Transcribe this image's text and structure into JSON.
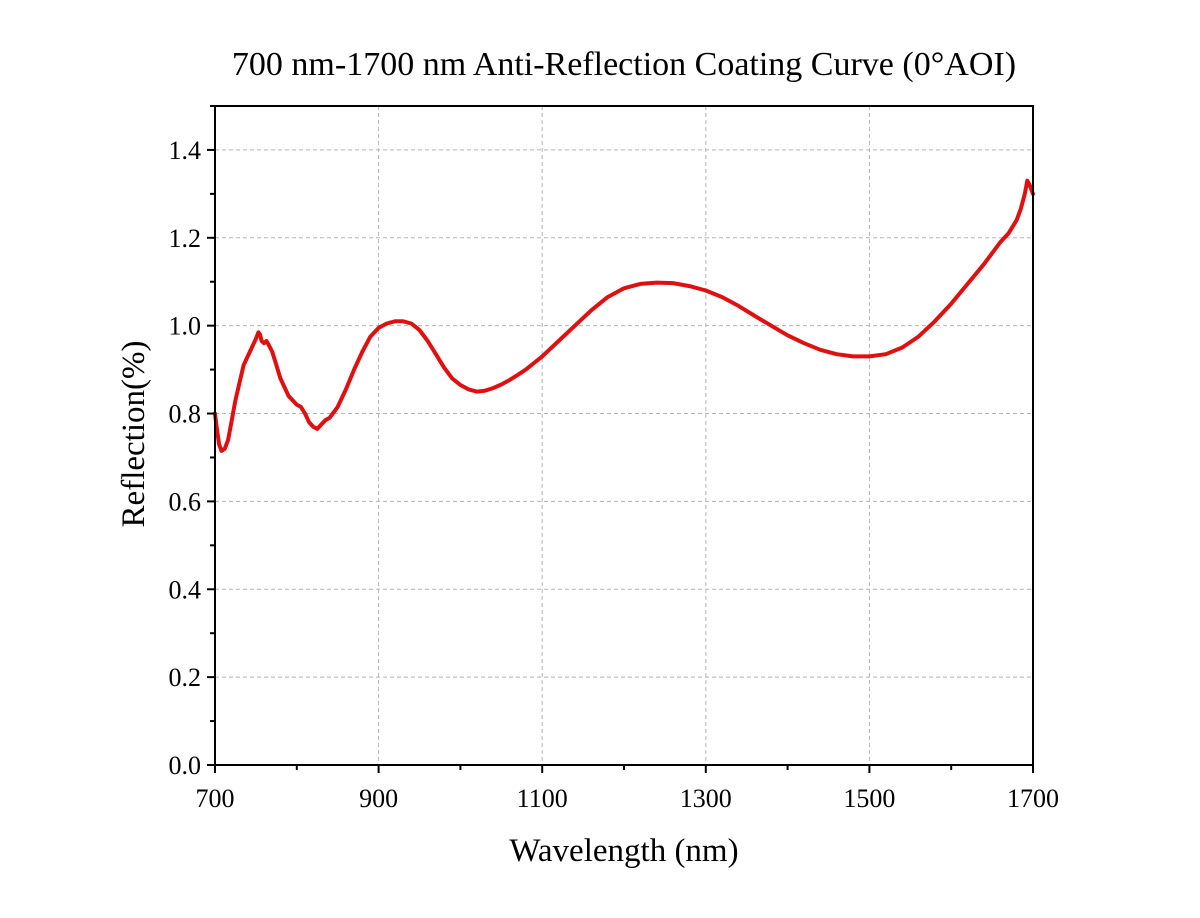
{
  "chart_data": {
    "type": "line",
    "title": "700 nm-1700 nm Anti-Reflection Coating Curve (0°AOI)",
    "xlabel": "Wavelength (nm)",
    "ylabel": "Reflection(%)",
    "xlim": [
      700,
      1700
    ],
    "ylim": [
      0,
      1.5
    ],
    "x_ticks": [
      700,
      900,
      1100,
      1300,
      1500,
      1700
    ],
    "x_tick_labels": [
      "700",
      "900",
      "1100",
      "1300",
      "1500",
      "1700"
    ],
    "y_ticks": [
      0.0,
      0.2,
      0.4,
      0.6,
      0.8,
      1.0,
      1.2,
      1.4
    ],
    "y_tick_labels": [
      "0.0",
      "0.2",
      "0.4",
      "0.6",
      "0.8",
      "1.0",
      "1.2",
      "1.4"
    ],
    "grid": true,
    "legend": "none",
    "colors": {
      "line": "#e01010",
      "frame": "#000000",
      "grid": "#b5b5b5"
    },
    "series": [
      {
        "x": [
          700,
          702,
          705,
          708,
          712,
          716,
          720,
          725,
          730,
          735,
          740,
          745,
          750,
          753,
          755,
          757,
          760,
          763,
          766,
          770,
          775,
          780,
          785,
          790,
          795,
          800,
          805,
          810,
          815,
          820,
          825,
          830,
          835,
          840,
          850,
          860,
          870,
          880,
          890,
          900,
          910,
          920,
          930,
          940,
          950,
          960,
          970,
          980,
          990,
          1000,
          1010,
          1020,
          1030,
          1040,
          1050,
          1060,
          1070,
          1080,
          1090,
          1100,
          1120,
          1140,
          1160,
          1180,
          1200,
          1220,
          1240,
          1260,
          1280,
          1300,
          1320,
          1340,
          1360,
          1380,
          1400,
          1420,
          1440,
          1460,
          1480,
          1500,
          1520,
          1540,
          1560,
          1580,
          1600,
          1620,
          1640,
          1660,
          1670,
          1680,
          1685,
          1690,
          1693,
          1696,
          1700
        ],
        "y": [
          0.8,
          0.77,
          0.73,
          0.715,
          0.72,
          0.74,
          0.78,
          0.83,
          0.87,
          0.91,
          0.93,
          0.95,
          0.97,
          0.985,
          0.98,
          0.965,
          0.96,
          0.965,
          0.955,
          0.94,
          0.91,
          0.88,
          0.86,
          0.84,
          0.83,
          0.82,
          0.815,
          0.8,
          0.78,
          0.77,
          0.765,
          0.775,
          0.785,
          0.79,
          0.815,
          0.855,
          0.9,
          0.94,
          0.975,
          0.995,
          1.005,
          1.01,
          1.01,
          1.005,
          0.99,
          0.965,
          0.935,
          0.905,
          0.88,
          0.865,
          0.855,
          0.85,
          0.852,
          0.858,
          0.866,
          0.876,
          0.888,
          0.9,
          0.915,
          0.93,
          0.965,
          1.0,
          1.035,
          1.065,
          1.085,
          1.095,
          1.098,
          1.097,
          1.09,
          1.08,
          1.065,
          1.045,
          1.022,
          1.0,
          0.978,
          0.96,
          0.945,
          0.935,
          0.93,
          0.93,
          0.935,
          0.95,
          0.975,
          1.01,
          1.05,
          1.095,
          1.14,
          1.19,
          1.21,
          1.24,
          1.265,
          1.3,
          1.33,
          1.32,
          1.3
        ]
      }
    ]
  }
}
